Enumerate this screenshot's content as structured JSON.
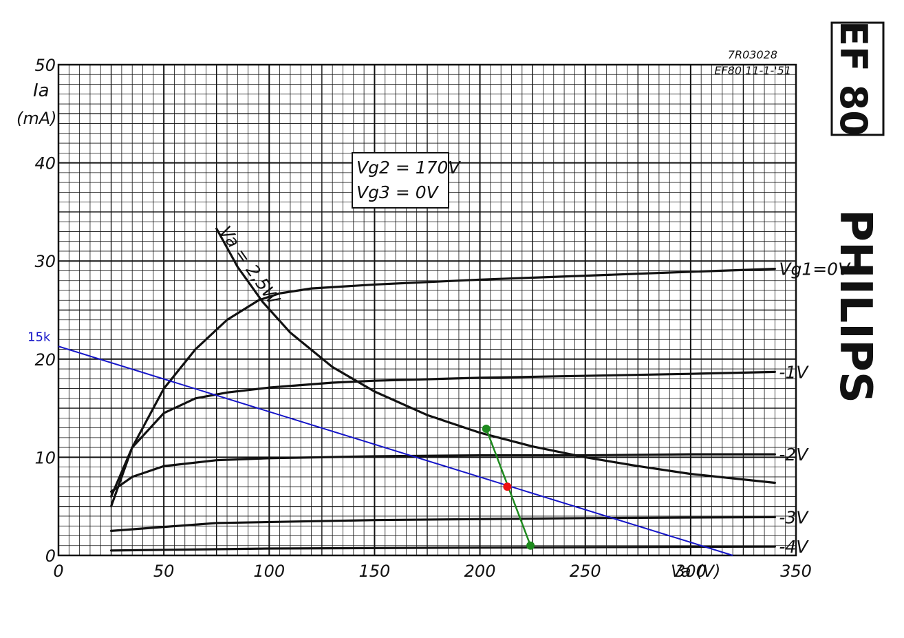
{
  "chart_data": {
    "type": "line",
    "ref_code": "7R03028",
    "ref_date": "EF80  11-1-'51",
    "tube_name": "EF 80",
    "brand": "PHILIPS",
    "conditions": [
      "Vg2 = 170V",
      "Vg3 = 0V"
    ],
    "ylabel_symbol": "Ia",
    "ylabel_unit": "(mA)",
    "xlabel": "Va (V)",
    "xlim": [
      0,
      350
    ],
    "ylim": [
      0,
      50
    ],
    "x_ticks": [
      0,
      50,
      100,
      150,
      200,
      250,
      300,
      350
    ],
    "y_ticks": [
      0,
      10,
      20,
      30,
      40,
      50
    ],
    "grid": true,
    "series": [
      {
        "name": "Vg1=0V",
        "x": [
          25,
          35,
          50,
          65,
          80,
          95,
          105,
          120,
          150,
          200,
          250,
          300,
          340
        ],
        "y": [
          5,
          11,
          17,
          21,
          24,
          26,
          26.7,
          27.2,
          27.6,
          28.1,
          28.5,
          28.9,
          29.2
        ]
      },
      {
        "name": "-1V",
        "x": [
          25,
          35,
          50,
          65,
          80,
          100,
          130,
          150,
          200,
          250,
          300,
          340
        ],
        "y": [
          6,
          11,
          14.5,
          16,
          16.6,
          17.1,
          17.6,
          17.8,
          18.1,
          18.3,
          18.5,
          18.7
        ]
      },
      {
        "name": "-2V",
        "x": [
          25,
          35,
          50,
          75,
          100,
          150,
          200,
          250,
          300,
          340
        ],
        "y": [
          6.5,
          8,
          9.1,
          9.7,
          9.9,
          10.1,
          10.2,
          10.2,
          10.3,
          10.3
        ]
      },
      {
        "name": "-3V",
        "x": [
          25,
          75,
          150,
          250,
          340
        ],
        "y": [
          2.5,
          3.3,
          3.6,
          3.8,
          3.9
        ]
      },
      {
        "name": "-4V",
        "x": [
          25,
          100,
          200,
          340
        ],
        "y": [
          0.5,
          0.7,
          0.8,
          0.9
        ]
      },
      {
        "name": "Va = 2,5W",
        "x": [
          75,
          85,
          97,
          110,
          130,
          150,
          175,
          200,
          225,
          250,
          275,
          300,
          340
        ],
        "y": [
          33.3,
          29.4,
          25.8,
          22.7,
          19.2,
          16.7,
          14.3,
          12.5,
          11.1,
          10,
          9.1,
          8.3,
          7.4
        ]
      }
    ],
    "overlays": {
      "load_line": {
        "label": "15k",
        "color": "#1515c8",
        "x": [
          0,
          320
        ],
        "y": [
          21.3,
          0
        ]
      },
      "green_segment": {
        "color": "#1e8a1e",
        "x": [
          203,
          224
        ],
        "y": [
          12.9,
          1.0
        ]
      },
      "red_point": {
        "color": "#ee1111",
        "x": 213,
        "y": 7.0
      }
    }
  }
}
